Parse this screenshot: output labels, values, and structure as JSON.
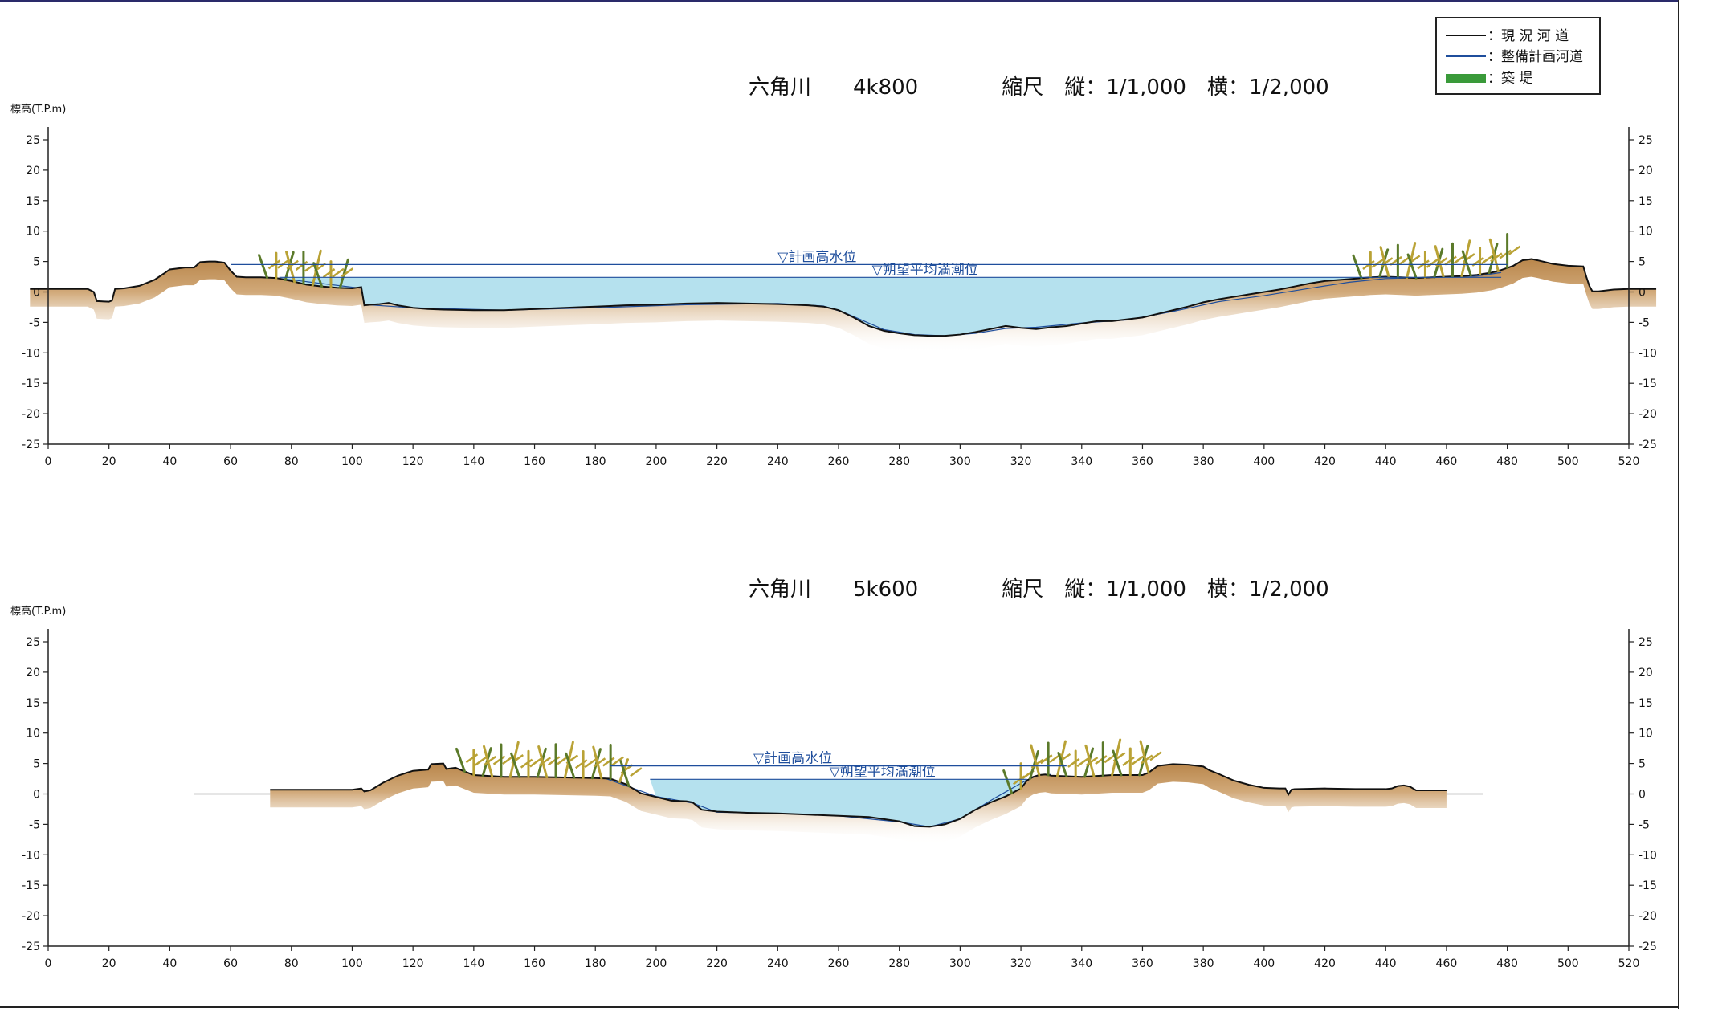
{
  "legend": {
    "items": [
      {
        "label": "：現 況 河 道",
        "color": "#111111",
        "kind": "line"
      },
      {
        "label": "：整備計画河道",
        "color": "#1f4e9c",
        "kind": "line"
      },
      {
        "label": "：築 堤",
        "color": "#3a9a3a",
        "kind": "fill"
      }
    ]
  },
  "colors": {
    "water": "#b5e1ee",
    "ground": "#c89a62",
    "ground_edge": "#e9d7bd",
    "axis": "#222222",
    "wl_line": "#1f4e9c",
    "wl_text": "#1f4e9c",
    "grass_dark": "#5b7a2a",
    "grass_light": "#b9a235"
  },
  "chart_data": [
    {
      "type": "area",
      "title": "六角川　　4k800　　　　縮尺　縦：1/1,000　横：1/2,000",
      "ylabel": "標高(T.P.m)",
      "xlim": [
        0,
        520
      ],
      "ylim": [
        -25,
        25
      ],
      "x_ticks": [
        0,
        20,
        40,
        60,
        80,
        100,
        120,
        140,
        160,
        180,
        200,
        220,
        240,
        260,
        280,
        300,
        320,
        340,
        360,
        380,
        400,
        420,
        440,
        460,
        480,
        500,
        520
      ],
      "y_ticks": [
        25,
        20,
        15,
        10,
        5,
        0,
        -5,
        -10,
        -15,
        -20,
        -25
      ],
      "water_levels": [
        {
          "label": "▽計画高水位",
          "elevation": 4.5,
          "x_start": 60,
          "x_end": 480,
          "label_x": 240
        },
        {
          "label": "▽朔望平均満潮位",
          "elevation": 2.4,
          "x_start": 76,
          "x_end": 478,
          "label_x": 271
        }
      ],
      "terrain": {
        "x": [
          -6,
          13,
          15,
          16,
          20,
          21,
          22,
          25,
          30,
          35,
          38,
          40,
          45,
          48,
          50,
          53,
          55,
          58,
          60,
          62,
          65,
          70,
          75,
          80,
          85,
          90,
          95,
          100,
          103,
          104,
          106,
          109,
          112,
          115,
          120,
          125,
          130,
          140,
          150,
          160,
          170,
          180,
          190,
          200,
          210,
          220,
          230,
          240,
          250,
          255,
          260,
          265,
          270,
          275,
          280,
          285,
          290,
          295,
          300,
          305,
          310,
          315,
          320,
          325,
          330,
          335,
          340,
          345,
          350,
          355,
          360,
          365,
          370,
          375,
          380,
          385,
          390,
          395,
          400,
          405,
          410,
          415,
          420,
          425,
          430,
          435,
          440,
          445,
          450,
          455,
          460,
          465,
          470,
          475,
          478,
          482,
          485,
          488,
          490,
          495,
          500,
          505,
          506,
          507,
          508,
          510,
          515,
          520,
          529
        ],
        "y": [
          0.5,
          0.5,
          0,
          -1.5,
          -1.6,
          -1.4,
          0.5,
          0.6,
          1,
          2,
          3,
          3.7,
          4,
          4,
          4.9,
          5,
          5,
          4.8,
          3.5,
          2.5,
          2.4,
          2.4,
          2.3,
          1.8,
          1.2,
          0.9,
          0.7,
          0.6,
          0.8,
          -2.2,
          -2.1,
          -2.0,
          -1.8,
          -2.2,
          -2.6,
          -2.8,
          -2.9,
          -3.0,
          -3.0,
          -2.8,
          -2.6,
          -2.4,
          -2.2,
          -2.1,
          -1.9,
          -1.8,
          -1.9,
          -2.0,
          -2.2,
          -2.4,
          -3.0,
          -4.2,
          -5.6,
          -6.4,
          -6.8,
          -7.1,
          -7.2,
          -7.2,
          -7.0,
          -6.6,
          -6.1,
          -5.6,
          -5.9,
          -6.1,
          -5.8,
          -5.6,
          -5.2,
          -4.8,
          -4.8,
          -4.5,
          -4.2,
          -3.6,
          -3.0,
          -2.4,
          -1.7,
          -1.2,
          -0.8,
          -0.4,
          0.0,
          0.4,
          0.9,
          1.4,
          1.8,
          2.0,
          2.2,
          2.4,
          2.5,
          2.4,
          2.3,
          2.4,
          2.5,
          2.6,
          2.8,
          3.2,
          3.6,
          4.3,
          5.2,
          5.4,
          5.2,
          4.6,
          4.3,
          4.2,
          2.5,
          1.0,
          0.1,
          0.1,
          0.4,
          0.5,
          0.5
        ]
      },
      "planned_channel": {
        "x": [
          75,
          103,
          104,
          105,
          120,
          150,
          180,
          210,
          240,
          255,
          262,
          275,
          285,
          295,
          305,
          315,
          325,
          340,
          355,
          370,
          385,
          400,
          415,
          428,
          440,
          470,
          478
        ],
        "y": [
          2.3,
          0.6,
          -2.2,
          -2.1,
          -2.6,
          -3.0,
          -2.6,
          -2.1,
          -1.9,
          -2.3,
          -3.4,
          -6.2,
          -7.0,
          -7.2,
          -6.8,
          -6.0,
          -5.8,
          -5.1,
          -4.6,
          -3.2,
          -1.6,
          -0.6,
          0.6,
          1.6,
          2.2,
          2.6,
          3.2
        ]
      },
      "levee_vegetation": [
        [
          72,
          98
        ],
        [
          432,
          482
        ]
      ]
    },
    {
      "type": "area",
      "title": "六角川　　5k600　　　　縮尺　縦：1/1,000　横：1/2,000",
      "ylabel": "標高(T.P.m)",
      "xlim": [
        0,
        520
      ],
      "ylim": [
        -25,
        25
      ],
      "x_ticks": [
        0,
        20,
        40,
        60,
        80,
        100,
        120,
        140,
        160,
        180,
        200,
        220,
        240,
        260,
        280,
        300,
        320,
        340,
        360,
        380,
        400,
        420,
        440,
        460,
        480,
        500,
        520
      ],
      "y_ticks": [
        25,
        20,
        15,
        10,
        5,
        0,
        -5,
        -10,
        -15,
        -20,
        -25
      ],
      "water_levels": [
        {
          "label": "▽計画高水位",
          "elevation": 4.6,
          "x_start": 185,
          "x_end": 335,
          "label_x": 232
        },
        {
          "label": "▽朔望平均満潮位",
          "elevation": 2.4,
          "x_start": 198,
          "x_end": 322,
          "label_x": 257
        }
      ],
      "terrain": {
        "x": [
          73,
          80,
          90,
          100,
          103,
          104,
          106,
          110,
          115,
          120,
          125,
          126,
          130,
          131,
          134,
          140,
          150,
          160,
          170,
          180,
          185,
          190,
          195,
          200,
          205,
          210,
          212,
          215,
          220,
          230,
          240,
          250,
          260,
          270,
          280,
          285,
          290,
          295,
          300,
          305,
          310,
          315,
          320,
          322,
          324,
          326,
          328,
          330,
          340,
          350,
          360,
          362,
          365,
          370,
          375,
          380,
          382,
          385,
          390,
          395,
          400,
          405,
          407,
          408,
          409,
          410,
          420,
          430,
          440,
          442,
          444,
          446,
          448,
          450,
          455,
          460
        ],
        "y": [
          0.7,
          0.7,
          0.7,
          0.7,
          0.9,
          0.4,
          0.6,
          1.8,
          3.0,
          3.8,
          4.0,
          4.9,
          5.0,
          4.1,
          4.3,
          3.1,
          2.8,
          2.8,
          2.7,
          2.6,
          2.5,
          1.6,
          0.1,
          -0.5,
          -1.1,
          -1.2,
          -1.4,
          -2.6,
          -2.9,
          -3.1,
          -3.2,
          -3.4,
          -3.6,
          -3.8,
          -4.5,
          -5.3,
          -5.4,
          -5.0,
          -4.1,
          -2.6,
          -1.4,
          -0.4,
          0.9,
          2.2,
          2.8,
          3.1,
          3.2,
          3.0,
          2.8,
          3.1,
          3.1,
          3.5,
          4.6,
          4.9,
          4.8,
          4.5,
          3.9,
          3.3,
          2.2,
          1.5,
          1.0,
          0.9,
          0.9,
          -0.1,
          0.7,
          0.8,
          0.9,
          0.8,
          0.8,
          0.9,
          1.3,
          1.4,
          1.2,
          0.6,
          0.6,
          0.6
        ]
      },
      "planned_channel": {
        "x": [
          183,
          200,
          212,
          220,
          240,
          260,
          280,
          290,
          300,
          312,
          322,
          326,
          330
        ],
        "y": [
          2.6,
          -0.4,
          -1.5,
          -3.0,
          -3.2,
          -3.6,
          -4.6,
          -5.4,
          -4.1,
          -0.5,
          2.3,
          3.1,
          3.2
        ]
      },
      "levee_vegetation": [
        [
          137,
          193
        ],
        [
          317,
          363
        ]
      ]
    }
  ]
}
